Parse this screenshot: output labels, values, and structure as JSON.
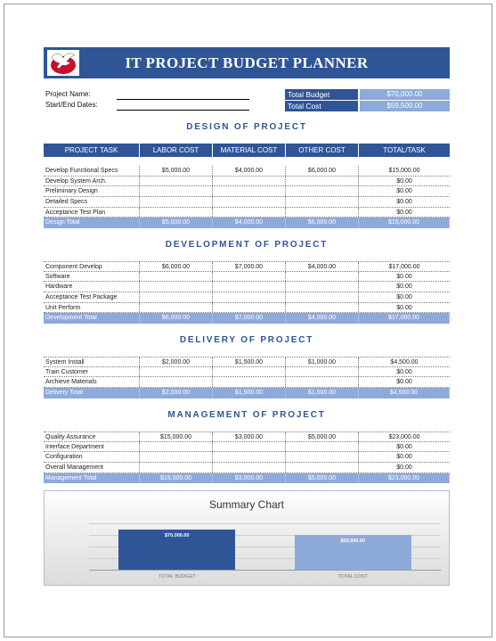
{
  "title": "IT PROJECT BUDGET PLANNER",
  "info": {
    "project_name_label": "Project Name:",
    "dates_label": "Start/End Dates:"
  },
  "summary": {
    "total_budget_label": "Total Budget",
    "total_budget_value": "$70,000.00",
    "total_cost_label": "Total Cost",
    "total_cost_value": "$59,500.00"
  },
  "headers": [
    "PROJECT TASK",
    "LABOR COST",
    "MATERIAL COST",
    "OTHER COST",
    "TOTAL/TASK"
  ],
  "sections": [
    {
      "title": "DESIGN OF PROJECT",
      "rows": [
        [
          "Develop Functional Specs",
          "$5,000.00",
          "$4,000.00",
          "$6,000.00",
          "$15,000.00"
        ],
        [
          "Develop System Arch.",
          "",
          "",
          "",
          "$0.00"
        ],
        [
          "Preliminary Design",
          "",
          "",
          "",
          "$0.00"
        ],
        [
          "Detailed Specs",
          "",
          "",
          "",
          "$0.00"
        ],
        [
          "Acceptance Test Plan",
          "",
          "",
          "",
          "$0.00"
        ]
      ],
      "total": [
        "Design Total",
        "$5,000.00",
        "$4,000.00",
        "$6,000.00",
        "$15,000.00"
      ]
    },
    {
      "title": "DEVELOPMENT OF PROJECT",
      "rows": [
        [
          "Component Develop",
          "$6,000.00",
          "$7,000.00",
          "$4,000.00",
          "$17,000.00"
        ],
        [
          "Software",
          "",
          "",
          "",
          "$0.00"
        ],
        [
          "Hardware",
          "",
          "",
          "",
          "$0.00"
        ],
        [
          "Acceptance Test Package",
          "",
          "",
          "",
          "$0.00"
        ],
        [
          "Unit Perform",
          "",
          "",
          "",
          "$0.00"
        ]
      ],
      "total": [
        "Development Total",
        "$6,000.00",
        "$7,000.00",
        "$4,000.00",
        "$17,000.00"
      ]
    },
    {
      "title": "DELIVERY OF PROJECT",
      "rows": [
        [
          "System Install",
          "$2,000.00",
          "$1,500.00",
          "$1,000.00",
          "$4,500.00"
        ],
        [
          "Train Customer",
          "",
          "",
          "",
          "$0.00"
        ],
        [
          "Archieve Materials",
          "",
          "",
          "",
          "$0.00"
        ]
      ],
      "total": [
        "Delivery Total",
        "$2,000.00",
        "$1,500.00",
        "$1,000.00",
        "$4,500.00"
      ]
    },
    {
      "title": "MANAGEMENT OF PROJECT",
      "rows": [
        [
          "Quality Assurance",
          "$15,000.00",
          "$3,000.00",
          "$5,000.00",
          "$23,000.00"
        ],
        [
          "Interface Department",
          "",
          "",
          "",
          "$0.00"
        ],
        [
          "Configuration",
          "",
          "",
          "",
          "$0.00"
        ],
        [
          "Overall Management",
          "",
          "",
          "",
          "$0.00"
        ]
      ],
      "total": [
        "Management Total",
        "$15,000.00",
        "$3,000.00",
        "$5,000.00",
        "$23,000.00"
      ]
    }
  ],
  "chart_data": {
    "type": "bar",
    "title": "Summary Chart",
    "categories": [
      "TOTAL BUDGET",
      "TOTAL COST"
    ],
    "values": [
      70000,
      59500
    ],
    "value_labels": [
      "$70,000.00",
      "$59,500.00"
    ],
    "colors": [
      "#2f5597",
      "#8eaadb"
    ],
    "ylim": [
      0,
      80000
    ],
    "grid": true
  }
}
